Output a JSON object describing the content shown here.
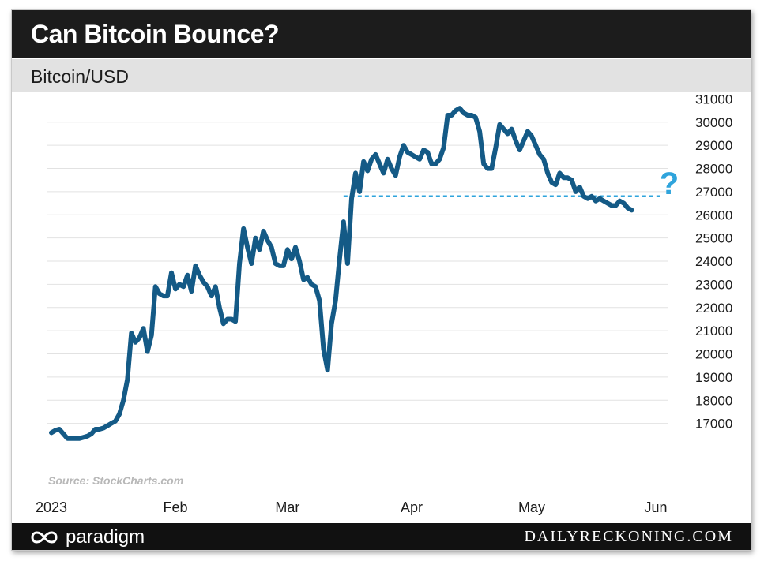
{
  "header": {
    "title": "Can Bitcoin Bounce?",
    "subtitle": "Bitcoin/USD"
  },
  "source": "Source: StockCharts.com",
  "footer": {
    "brand_left": "paradigm",
    "brand_right": "DAILYRECKONING.COM"
  },
  "colors": {
    "line": "#145a86",
    "support": "#2fa4dc",
    "question": "#2fa4dc",
    "grid": "#e2e2e2"
  },
  "chart_data": {
    "type": "line",
    "title": "Can Bitcoin Bounce?",
    "subtitle": "Bitcoin/USD",
    "ylim": [
      16000,
      31000
    ],
    "yticks": [
      17000,
      18000,
      19000,
      20000,
      21000,
      22000,
      23000,
      24000,
      25000,
      26000,
      27000,
      28000,
      29000,
      30000,
      31000
    ],
    "xlim": [
      "2023-01-01",
      "2023-06-01"
    ],
    "xticks": [
      {
        "date": "2023-01-01",
        "label": "2023"
      },
      {
        "date": "2023-02-01",
        "label": "Feb"
      },
      {
        "date": "2023-03-01",
        "label": "Mar"
      },
      {
        "date": "2023-04-01",
        "label": "Apr"
      },
      {
        "date": "2023-05-01",
        "label": "May"
      },
      {
        "date": "2023-06-01",
        "label": "Jun"
      }
    ],
    "grid": true,
    "annotation": {
      "text": "?",
      "support_level": 26800,
      "support_start": "2023-03-15"
    },
    "series": [
      {
        "x": [
          "2023-01-01",
          "2023-01-02",
          "2023-01-03",
          "2023-01-04",
          "2023-01-05",
          "2023-01-06",
          "2023-01-07",
          "2023-01-08",
          "2023-01-09",
          "2023-01-10",
          "2023-01-11",
          "2023-01-12",
          "2023-01-13",
          "2023-01-14",
          "2023-01-15",
          "2023-01-16",
          "2023-01-17",
          "2023-01-18",
          "2023-01-19",
          "2023-01-20",
          "2023-01-21",
          "2023-01-22",
          "2023-01-23",
          "2023-01-24",
          "2023-01-25",
          "2023-01-26",
          "2023-01-27",
          "2023-01-28",
          "2023-01-29",
          "2023-01-30",
          "2023-01-31",
          "2023-02-01",
          "2023-02-02",
          "2023-02-03",
          "2023-02-04",
          "2023-02-05",
          "2023-02-06",
          "2023-02-07",
          "2023-02-08",
          "2023-02-09",
          "2023-02-10",
          "2023-02-11",
          "2023-02-12",
          "2023-02-13",
          "2023-02-14",
          "2023-02-15",
          "2023-02-16",
          "2023-02-17",
          "2023-02-18",
          "2023-02-19",
          "2023-02-20",
          "2023-02-21",
          "2023-02-22",
          "2023-02-23",
          "2023-02-24",
          "2023-02-25",
          "2023-02-26",
          "2023-02-27",
          "2023-02-28",
          "2023-03-01",
          "2023-03-02",
          "2023-03-03",
          "2023-03-04",
          "2023-03-05",
          "2023-03-06",
          "2023-03-07",
          "2023-03-08",
          "2023-03-09",
          "2023-03-10",
          "2023-03-11",
          "2023-03-12",
          "2023-03-13",
          "2023-03-14",
          "2023-03-15",
          "2023-03-16",
          "2023-03-17",
          "2023-03-18",
          "2023-03-19",
          "2023-03-20",
          "2023-03-21",
          "2023-03-22",
          "2023-03-23",
          "2023-03-24",
          "2023-03-25",
          "2023-03-26",
          "2023-03-27",
          "2023-03-28",
          "2023-03-29",
          "2023-03-30",
          "2023-03-31",
          "2023-04-01",
          "2023-04-02",
          "2023-04-03",
          "2023-04-04",
          "2023-04-05",
          "2023-04-06",
          "2023-04-07",
          "2023-04-08",
          "2023-04-09",
          "2023-04-10",
          "2023-04-11",
          "2023-04-12",
          "2023-04-13",
          "2023-04-14",
          "2023-04-15",
          "2023-04-16",
          "2023-04-17",
          "2023-04-18",
          "2023-04-19",
          "2023-04-20",
          "2023-04-21",
          "2023-04-22",
          "2023-04-23",
          "2023-04-24",
          "2023-04-25",
          "2023-04-26",
          "2023-04-27",
          "2023-04-28",
          "2023-04-29",
          "2023-04-30",
          "2023-05-01",
          "2023-05-02",
          "2023-05-03",
          "2023-05-04",
          "2023-05-05",
          "2023-05-06",
          "2023-05-07",
          "2023-05-08",
          "2023-05-09",
          "2023-05-10",
          "2023-05-11",
          "2023-05-12",
          "2023-05-13",
          "2023-05-14",
          "2023-05-15",
          "2023-05-16",
          "2023-05-17",
          "2023-05-18",
          "2023-05-19",
          "2023-05-20",
          "2023-05-21",
          "2023-05-22",
          "2023-05-23",
          "2023-05-24",
          "2023-05-25",
          "2023-05-26"
        ],
        "y": [
          16600,
          16700,
          16750,
          16550,
          16350,
          16350,
          16350,
          16350,
          16400,
          16450,
          16550,
          16750,
          16750,
          16800,
          16900,
          17000,
          17100,
          17400,
          18000,
          18900,
          20900,
          20500,
          20700,
          21100,
          20100,
          20800,
          22900,
          22600,
          22500,
          22500,
          23500,
          22800,
          23000,
          22900,
          23400,
          22700,
          23800,
          23400,
          23100,
          22900,
          22500,
          22900,
          22000,
          21300,
          21500,
          21500,
          21400,
          23900,
          25400,
          24600,
          23900,
          25000,
          24500,
          25300,
          24900,
          24600,
          23900,
          23800,
          23800,
          24500,
          24100,
          24600,
          24000,
          23200,
          23300,
          23000,
          22900,
          22300,
          20200,
          19300,
          21300,
          22300,
          24100,
          25700,
          23900,
          26700,
          27800,
          27000,
          28300,
          27900,
          28400,
          28600,
          28200,
          27800,
          28400,
          28000,
          27700,
          28500,
          29000,
          28700,
          28600,
          28500,
          28400,
          28800,
          28700,
          28200,
          28200,
          28400,
          28900,
          30300,
          30300,
          30500,
          30600,
          30400,
          30300,
          30300,
          30200,
          29600,
          28200,
          28000,
          28000,
          28900,
          29900,
          29700,
          29500,
          29700,
          29200,
          28800,
          29200,
          29600,
          29400,
          29000,
          28600,
          28400,
          27800,
          27400,
          27300,
          27800,
          27600,
          27600,
          27500,
          27000,
          27200,
          26800,
          26700,
          26800,
          26600,
          26700,
          26600,
          26500,
          26400,
          26400,
          26600,
          26500,
          26300,
          26200
        ]
      }
    ]
  }
}
